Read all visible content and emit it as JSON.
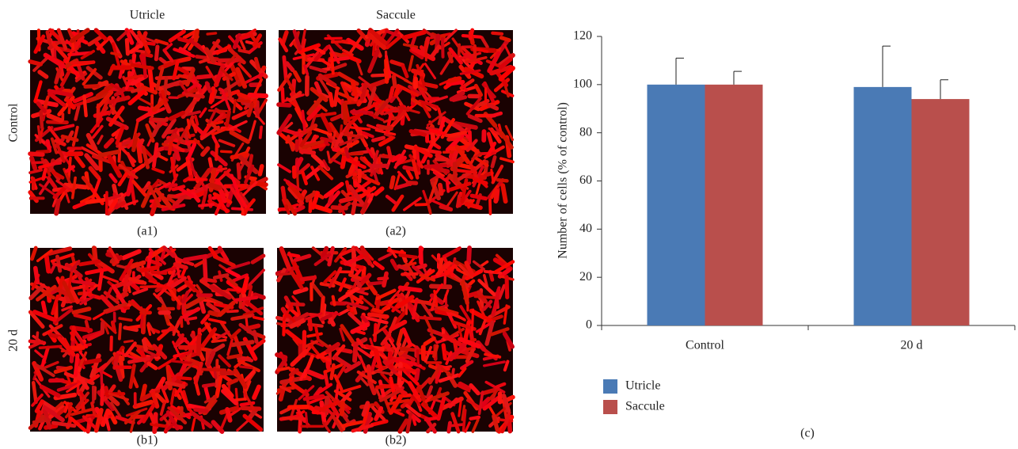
{
  "panels": {
    "column_labels": [
      "Utricle",
      "Saccule"
    ],
    "row_labels": [
      "Control",
      "20 d"
    ],
    "image_labels": [
      "(a1)",
      "(a2)",
      "(b1)",
      "(b2)"
    ]
  },
  "chart_data": {
    "type": "bar",
    "caption": "(c)",
    "y_label": "Number of cells (% of control)",
    "categories": [
      "Control",
      "20 d"
    ],
    "series": [
      {
        "name": "Utricle",
        "color": "#4a7ab5",
        "values": [
          100,
          99
        ],
        "errors": [
          11,
          17
        ]
      },
      {
        "name": "Saccule",
        "color": "#b94f4c",
        "values": [
          100,
          94
        ],
        "errors": [
          5.5,
          8
        ]
      }
    ],
    "ylim": [
      0,
      120
    ],
    "yticks": [
      0,
      20,
      40,
      60,
      80,
      100,
      120
    ],
    "grid": false,
    "legend": "bottom-left"
  }
}
